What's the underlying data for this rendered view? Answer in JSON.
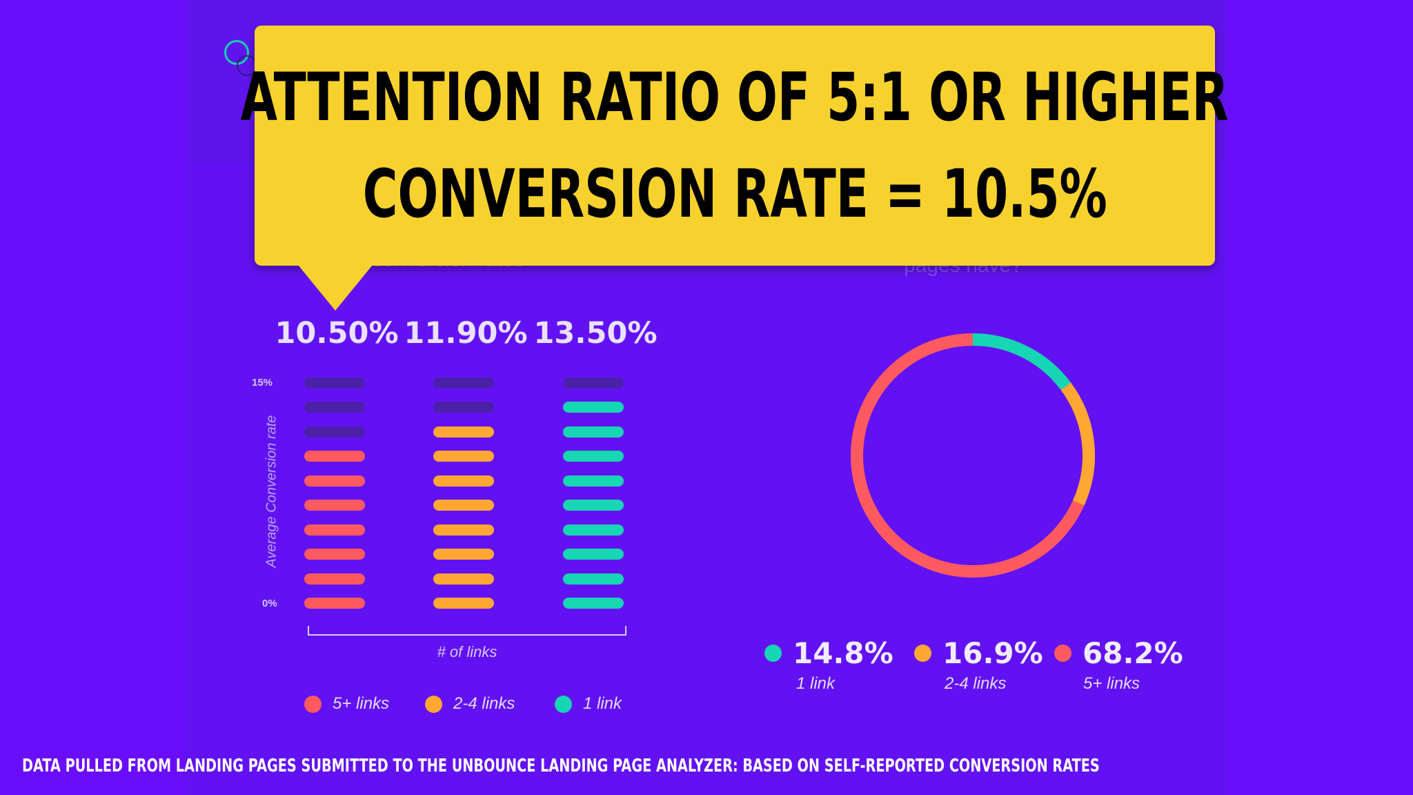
{
  "callout": {
    "line1": "Attention ratio of 5:1 or higher",
    "line2": "Conversion rate = 10.5%"
  },
  "background_text": {
    "left_fragment": "conversion rates",
    "right_fragment": "pages have?"
  },
  "colors": {
    "five_plus": "#ff5a5f",
    "two_to_four": "#ffa733",
    "one": "#16d6b3",
    "inactive": "#4b1fa8",
    "callout": "#f7d22e"
  },
  "chart_data": [
    {
      "type": "bar",
      "categories": [
        "5+ links",
        "2-4 links",
        "1 link"
      ],
      "values": [
        10.5,
        11.9,
        13.5
      ],
      "value_labels": [
        "10.50%",
        "11.90%",
        "13.50%"
      ],
      "ylabel": "Average Conversion rate",
      "xlabel": "# of links",
      "yticks": [
        "15%",
        "0%"
      ],
      "ylim": [
        0,
        15
      ],
      "segments_total": 10,
      "legend": [
        "5+ links",
        "2-4 links",
        "1 link"
      ]
    },
    {
      "type": "pie",
      "donut": true,
      "slices": [
        {
          "label": "1 link",
          "value": 14.8,
          "display": "14.8%"
        },
        {
          "label": "2-4 links",
          "value": 16.9,
          "display": "16.9%"
        },
        {
          "label": "5+ links",
          "value": 68.2,
          "display": "68.2%"
        }
      ]
    }
  ],
  "footer": "Data pulled from landing pages submitted to the Unbounce Landing Page Analyzer: based on self-reported conversion rates"
}
